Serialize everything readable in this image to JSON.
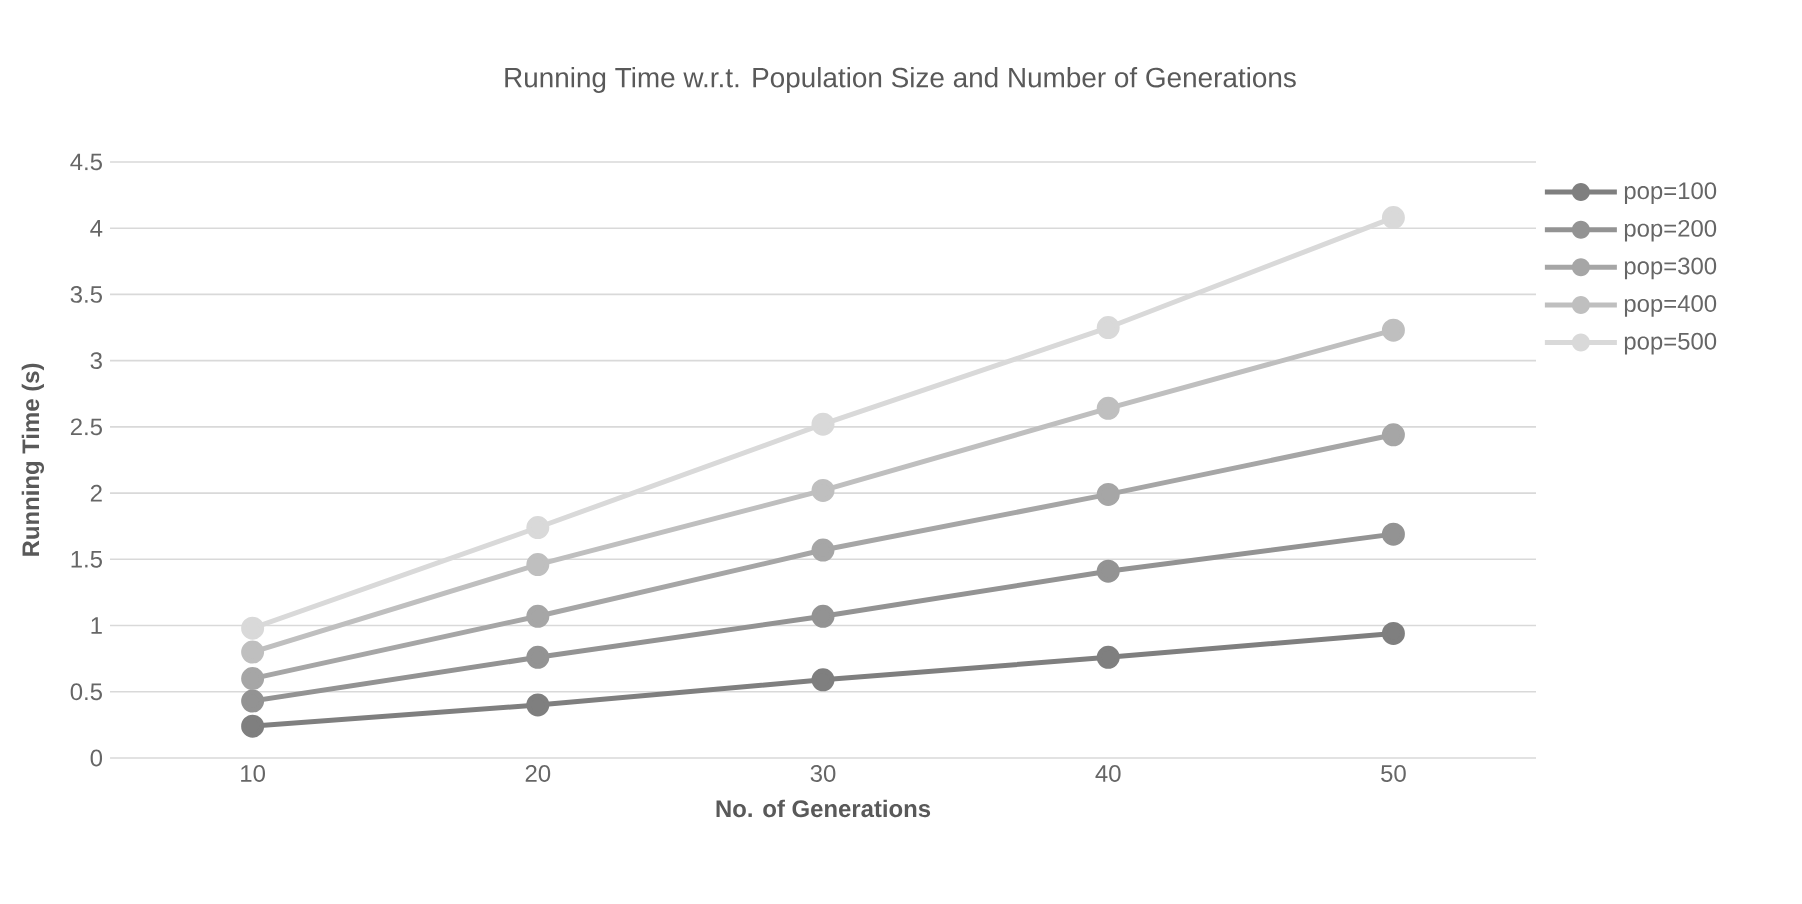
{
  "chart_data": {
    "type": "line",
    "title": "Running Time w.r.t. Population Size and Number of Generations",
    "xlabel": "No. of Generations",
    "ylabel": "Running Time (s)",
    "categories": [
      "10",
      "20",
      "30",
      "40",
      "50"
    ],
    "series": [
      {
        "name": "pop=100",
        "color": "#7f7f7f",
        "values": [
          0.24,
          0.4,
          0.59,
          0.76,
          0.94
        ]
      },
      {
        "name": "pop=200",
        "color": "#939393",
        "values": [
          0.43,
          0.76,
          1.07,
          1.41,
          1.69
        ]
      },
      {
        "name": "pop=300",
        "color": "#a6a6a6",
        "values": [
          0.6,
          1.07,
          1.57,
          1.99,
          2.44
        ]
      },
      {
        "name": "pop=400",
        "color": "#bfbfbf",
        "values": [
          0.8,
          1.46,
          2.02,
          2.64,
          3.23
        ]
      },
      {
        "name": "pop=500",
        "color": "#d9d9d9",
        "values": [
          0.98,
          1.74,
          2.52,
          3.25,
          4.08
        ]
      }
    ],
    "ylim": [
      0,
      4.5
    ],
    "yticks": [
      0,
      0.5,
      1,
      1.5,
      2,
      2.5,
      3,
      3.5,
      4,
      4.5
    ],
    "grid": "y",
    "legend": "right",
    "marker": "circle",
    "line_style": "solid"
  }
}
